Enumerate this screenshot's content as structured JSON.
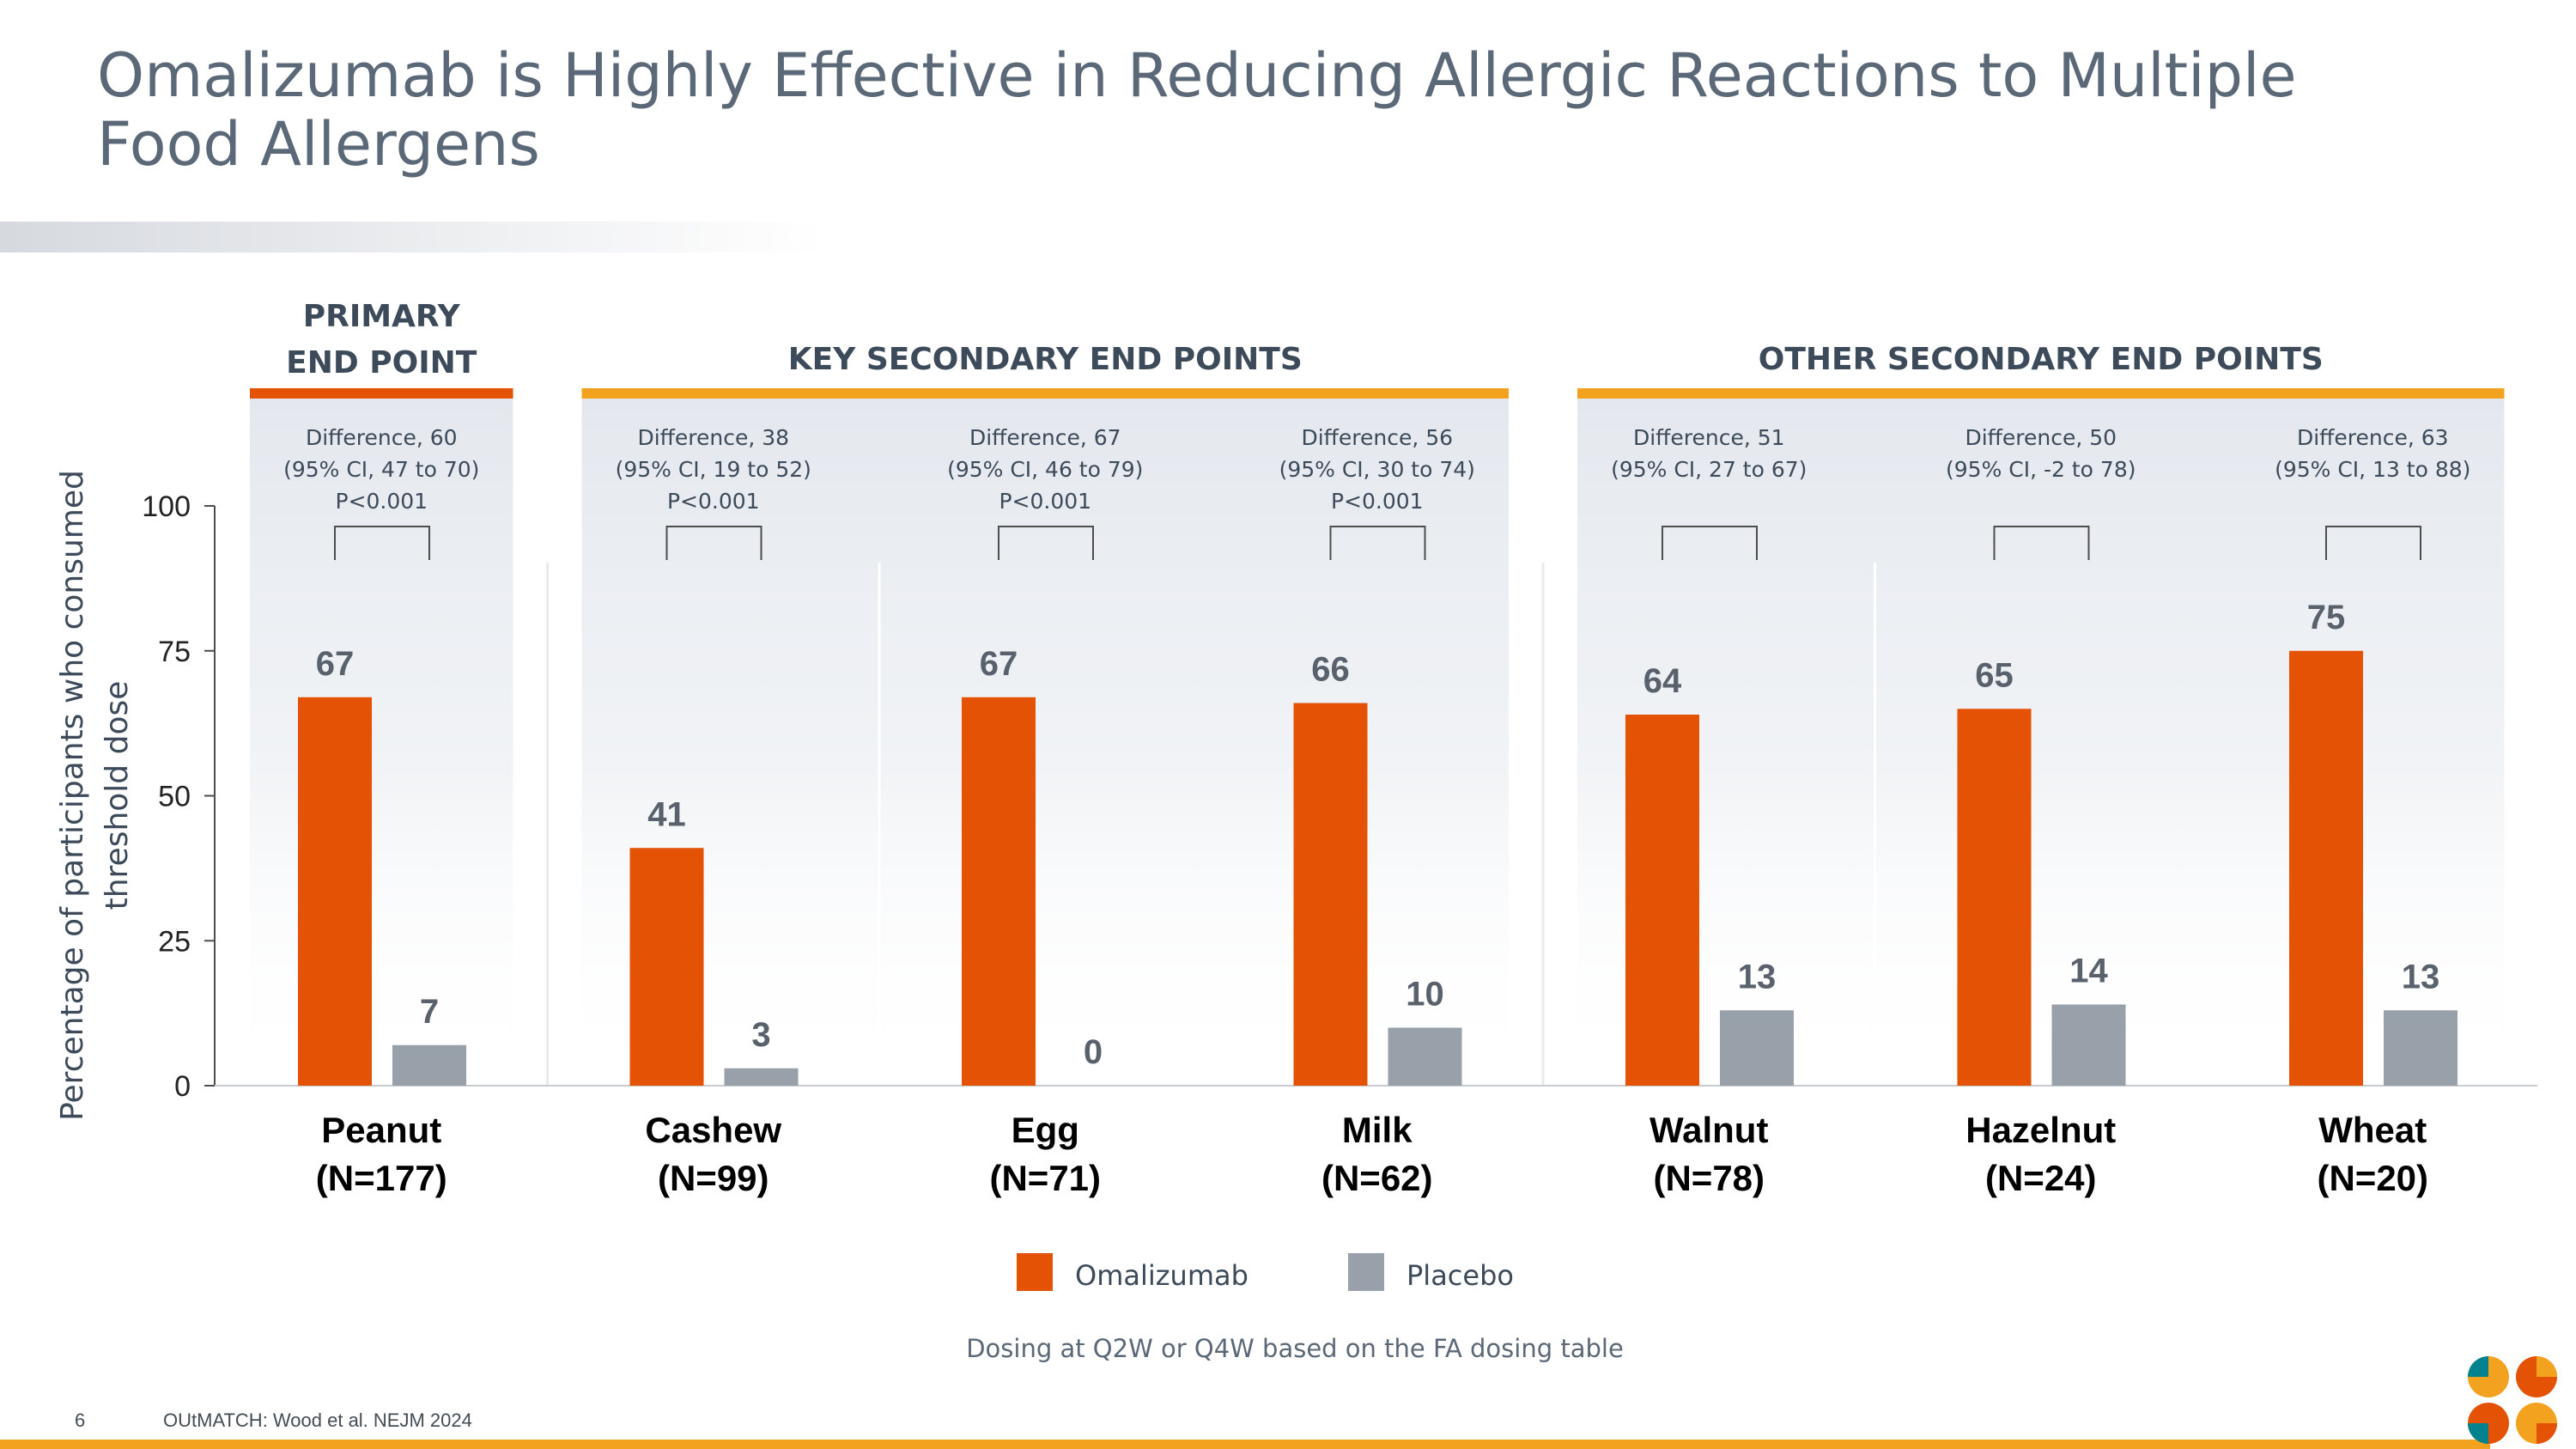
{
  "title": "Omalizumab is Highly Effective in Reducing Allergic Reactions to Multiple Food Allergens",
  "footer": {
    "page_number": "6",
    "source": "OUtMATCH: Wood et al. NEJM 2024"
  },
  "note": "Dosing at Q2W or Q4W based on the FA dosing table",
  "colors": {
    "primary": "#e35205",
    "placebo": "#98a0a9",
    "primary_header": "#e35205",
    "secondary_header": "#f3a21f",
    "title": "#5b6877"
  },
  "chart_data": {
    "type": "bar",
    "ylabel": [
      "Percentage of participants who consumed",
      "threshold dose"
    ],
    "ylim": [
      0,
      100
    ],
    "yticks": [
      0,
      25,
      50,
      75,
      100
    ],
    "categories": [
      {
        "name": "Peanut",
        "n": "(N=177)"
      },
      {
        "name": "Cashew",
        "n": "(N=99)"
      },
      {
        "name": "Egg",
        "n": "(N=71)"
      },
      {
        "name": "Milk",
        "n": "(N=62)"
      },
      {
        "name": "Walnut",
        "n": "(N=78)"
      },
      {
        "name": "Hazelnut",
        "n": "(N=24)"
      },
      {
        "name": "Wheat",
        "n": "(N=20)"
      }
    ],
    "series": [
      {
        "name": "Omalizumab",
        "color": "#e35205",
        "values": [
          67,
          41,
          67,
          66,
          64,
          65,
          75
        ]
      },
      {
        "name": "Placebo",
        "color": "#98a0a9",
        "values": [
          7,
          3,
          0,
          10,
          13,
          14,
          13
        ]
      }
    ],
    "groups": [
      {
        "label": [
          "PRIMARY",
          "END POINT"
        ],
        "categories": [
          0
        ],
        "color": "#e35205"
      },
      {
        "label": [
          "KEY SECONDARY END POINTS"
        ],
        "categories": [
          1,
          2,
          3
        ],
        "color": "#f3a21f"
      },
      {
        "label": [
          "OTHER SECONDARY END POINTS"
        ],
        "categories": [
          4,
          5,
          6
        ],
        "color": "#f3a21f"
      }
    ],
    "differences": [
      [
        "Difference, 60",
        "(95% CI, 47 to 70)",
        "P<0.001"
      ],
      [
        "Difference, 38",
        "(95% CI, 19 to 52)",
        "P<0.001"
      ],
      [
        "Difference, 67",
        "(95% CI, 46 to 79)",
        "P<0.001"
      ],
      [
        "Difference, 56",
        "(95% CI, 30 to 74)",
        "P<0.001"
      ],
      [
        "Difference, 51",
        "(95% CI, 27 to 67)"
      ],
      [
        "Difference, 50",
        "(95% CI, -2 to 78)"
      ],
      [
        "Difference, 63",
        "(95% CI, 13 to 88)"
      ]
    ]
  }
}
